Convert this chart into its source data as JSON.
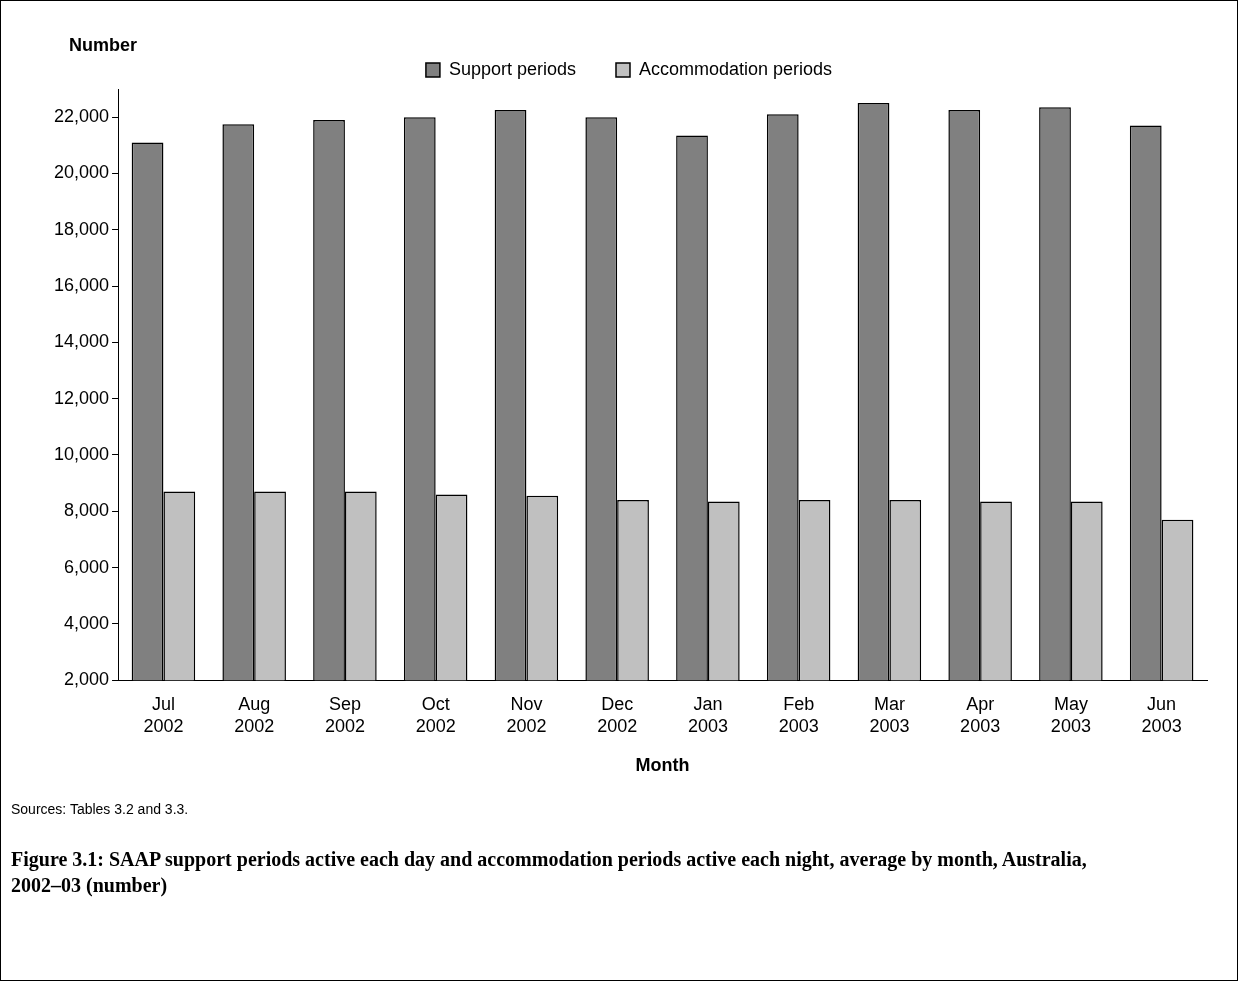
{
  "chart_data": {
    "type": "bar",
    "title": "Figure 3.1: SAAP support periods active each day and accommodation periods active each night, average by month, Australia, 2002–03 (number)",
    "xlabel": "Month",
    "ylabel": "Number",
    "categories": [
      "Jul 2002",
      "Aug 2002",
      "Sep 2002",
      "Oct 2002",
      "Nov 2002",
      "Dec 2002",
      "Jan 2003",
      "Feb 2003",
      "Mar 2003",
      "Apr 2003",
      "May 2003",
      "Jun 2003"
    ],
    "series": [
      {
        "name": "Support periods",
        "color": "#808080",
        "values": [
          21100,
          21750,
          21900,
          22000,
          22250,
          22000,
          21350,
          22100,
          22500,
          22250,
          22350,
          21700
        ]
      },
      {
        "name": "Accommodation periods",
        "color": "#c0c0c0",
        "values": [
          8700,
          8700,
          8700,
          8600,
          8550,
          8400,
          8350,
          8400,
          8400,
          8350,
          8350,
          7700
        ]
      }
    ],
    "ylim": [
      2000,
      23000
    ],
    "yticks": [
      {
        "value": 2000,
        "label": "2,000"
      },
      {
        "value": 4000,
        "label": "4,000"
      },
      {
        "value": 6000,
        "label": "6,000"
      },
      {
        "value": 8000,
        "label": "8,000"
      },
      {
        "value": 10000,
        "label": "10,000"
      },
      {
        "value": 12000,
        "label": "12,000"
      },
      {
        "value": 14000,
        "label": "14,000"
      },
      {
        "value": 16000,
        "label": "16,000"
      },
      {
        "value": 18000,
        "label": "18,000"
      },
      {
        "value": 20000,
        "label": "20,000"
      },
      {
        "value": 22000,
        "label": "22,000"
      }
    ],
    "grid": false,
    "legend": "top",
    "annotations": [
      "Sources: Tables 3.2 and 3.3."
    ]
  }
}
